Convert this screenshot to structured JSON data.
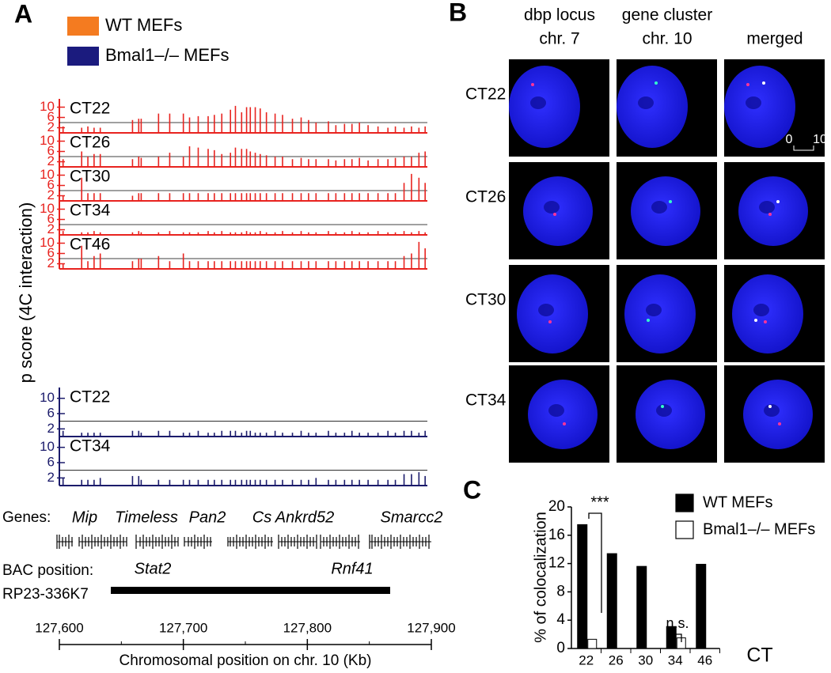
{
  "panels": [
    "A",
    "B",
    "C"
  ],
  "genes": {
    "label": "Genes:",
    "top": [
      "Mip",
      "Timeless",
      "Pan2",
      "Cs",
      "Ankrd52",
      "Smarcc2"
    ],
    "bottom": [
      "Stat2",
      "Rnf41"
    ]
  },
  "bac": {
    "label": "BAC position:",
    "clone": "RP23-336K7"
  },
  "images": {
    "columns": [
      [
        "dbp locus",
        "chr. 7"
      ],
      [
        "gene cluster",
        "chr. 10"
      ],
      [
        "merged"
      ]
    ],
    "rows": [
      "CT22",
      "CT26",
      "CT30",
      "CT34"
    ],
    "scale_bar": [
      "0",
      "10"
    ]
  },
  "chart_data": [
    {
      "type": "track",
      "y_label": "p score (4C interaction)",
      "legend": [
        {
          "name": "WT MEFs",
          "color": "#f47b20"
        },
        {
          "name": "Bmal1–/– MEFs",
          "color": "#1b1b7e"
        }
      ],
      "x": [
        127603,
        127618,
        127623,
        127628,
        127633,
        127659,
        127664,
        127666,
        127680,
        127689,
        127700,
        127705,
        127712,
        127720,
        127725,
        127731,
        127738,
        127742,
        127747,
        127751,
        127754,
        127758,
        127762,
        127767,
        127774,
        127780,
        127788,
        127795,
        127801,
        127807,
        127817,
        127823,
        127830,
        127836,
        127842,
        127849,
        127857,
        127865,
        127871,
        127878,
        127884,
        127890,
        127895
      ],
      "xlim": [
        127600,
        127900
      ],
      "xticks": [
        {
          "value": 127600,
          "label": "127,600"
        },
        {
          "value": 127700,
          "label": "127,700"
        },
        {
          "value": 127800,
          "label": "127,800"
        },
        {
          "value": 127900,
          "label": "127,900"
        }
      ],
      "x_label": "Chromosomal position on chr. 10 (Kb)",
      "ylim": [
        0,
        12
      ],
      "yticks": [
        2,
        6,
        10
      ],
      "threshold": 4,
      "series": [
        {
          "name": "CT22",
          "color": "#e8231f",
          "values": [
            2.5,
            2,
            2.5,
            2,
            2,
            5,
            5.5,
            5.5,
            7.5,
            7.5,
            7.5,
            6,
            6.5,
            6.5,
            7,
            7.5,
            9,
            10.5,
            8,
            10,
            10,
            10,
            9.5,
            8,
            7.5,
            7,
            5.5,
            6,
            5,
            4,
            4.5,
            3,
            3.5,
            3.5,
            4,
            3,
            2.5,
            2,
            2.5,
            2,
            2.5,
            2,
            2.5
          ]
        },
        {
          "name": "CT26",
          "color": "#e8231f",
          "values": [
            3,
            6,
            4,
            5,
            5,
            3,
            4,
            3.5,
            4,
            5.5,
            4,
            8,
            7.5,
            7,
            6.5,
            5,
            5.5,
            7.5,
            7,
            7,
            6,
            5.5,
            5,
            4.5,
            4,
            4,
            3,
            3.5,
            3,
            3,
            3,
            2.5,
            3,
            3,
            3.5,
            2.5,
            3,
            3,
            3.5,
            4,
            4,
            5.5,
            6
          ]
        },
        {
          "name": "CT30",
          "color": "#e8231f",
          "values": [
            2,
            9,
            3,
            3,
            3,
            2,
            3,
            3,
            3,
            3,
            3,
            3,
            3,
            3,
            3,
            3,
            3,
            3,
            3,
            3,
            3,
            3,
            3,
            3,
            3,
            3,
            3,
            3,
            3,
            3,
            3,
            3,
            3,
            3,
            3,
            3,
            3,
            3,
            3,
            7,
            10.5,
            9,
            7
          ]
        },
        {
          "name": "CT34",
          "color": "#e8231f",
          "values": [
            1.5,
            1,
            1,
            1.5,
            1,
            1,
            1.5,
            1,
            1,
            1.5,
            1,
            1,
            1,
            1.5,
            1,
            1.5,
            1,
            1,
            1,
            1.5,
            1,
            1,
            1.5,
            1,
            1,
            1.5,
            1,
            1.5,
            1,
            1,
            1.5,
            1,
            1,
            1.5,
            1,
            1,
            1.5,
            1,
            1,
            1.5,
            1,
            1.5,
            1
          ]
        },
        {
          "name": "CT46",
          "color": "#e8231f",
          "values": [
            2,
            9,
            3,
            5,
            6,
            3,
            4,
            4,
            5,
            3,
            6,
            3,
            3,
            3,
            3,
            3,
            3,
            3,
            3,
            3,
            3,
            3,
            3,
            3,
            3,
            3,
            3,
            3,
            3,
            3,
            3,
            3,
            3,
            3,
            3,
            3,
            3,
            3,
            3,
            5,
            6,
            10.5,
            8
          ]
        },
        {
          "name": "CT22",
          "color": "#1b1b6b",
          "values": [
            1.5,
            1,
            1,
            1,
            1,
            1.5,
            1.5,
            1,
            1.5,
            1.5,
            1,
            1,
            1.5,
            1,
            1,
            1.5,
            1.5,
            1.5,
            1,
            1.5,
            1.5,
            1,
            1,
            1,
            1.5,
            1,
            1,
            1.5,
            1,
            1,
            1.5,
            1,
            1,
            1.5,
            1,
            1,
            1,
            1.5,
            1,
            1.5,
            1.5,
            1,
            1.5
          ]
        },
        {
          "name": "CT34",
          "color": "#1b1b6b",
          "values": [
            2,
            1.5,
            1.5,
            1.5,
            2,
            2.5,
            2.5,
            1.5,
            1.5,
            1.5,
            1.5,
            1.5,
            1.5,
            1.5,
            1.5,
            1.5,
            1.5,
            1.5,
            1.5,
            1.5,
            1.5,
            1.5,
            1.5,
            1.5,
            1.5,
            1.5,
            1.5,
            1.5,
            1.5,
            2,
            1.5,
            1.5,
            1.5,
            1.5,
            1.5,
            1.5,
            1.5,
            1.5,
            1.5,
            3,
            3,
            3.5,
            2.5
          ]
        }
      ]
    },
    {
      "type": "bar",
      "y_label": "% of colocalization",
      "x_label": "CT",
      "categories": [
        "22",
        "26",
        "30",
        "34",
        "46"
      ],
      "series": [
        {
          "name": "WT MEFs",
          "color": "#000000",
          "values": [
            17.5,
            13.4,
            11.6,
            3.1,
            11.9
          ]
        },
        {
          "name": "Bmal1–/– MEFs",
          "color": "#ffffff",
          "values": [
            1.3,
            null,
            null,
            1.5,
            null
          ]
        }
      ],
      "ylim": [
        0,
        20
      ],
      "yticks": [
        0,
        4,
        8,
        12,
        16,
        20
      ],
      "annotations": [
        "***",
        "n.s."
      ]
    }
  ]
}
